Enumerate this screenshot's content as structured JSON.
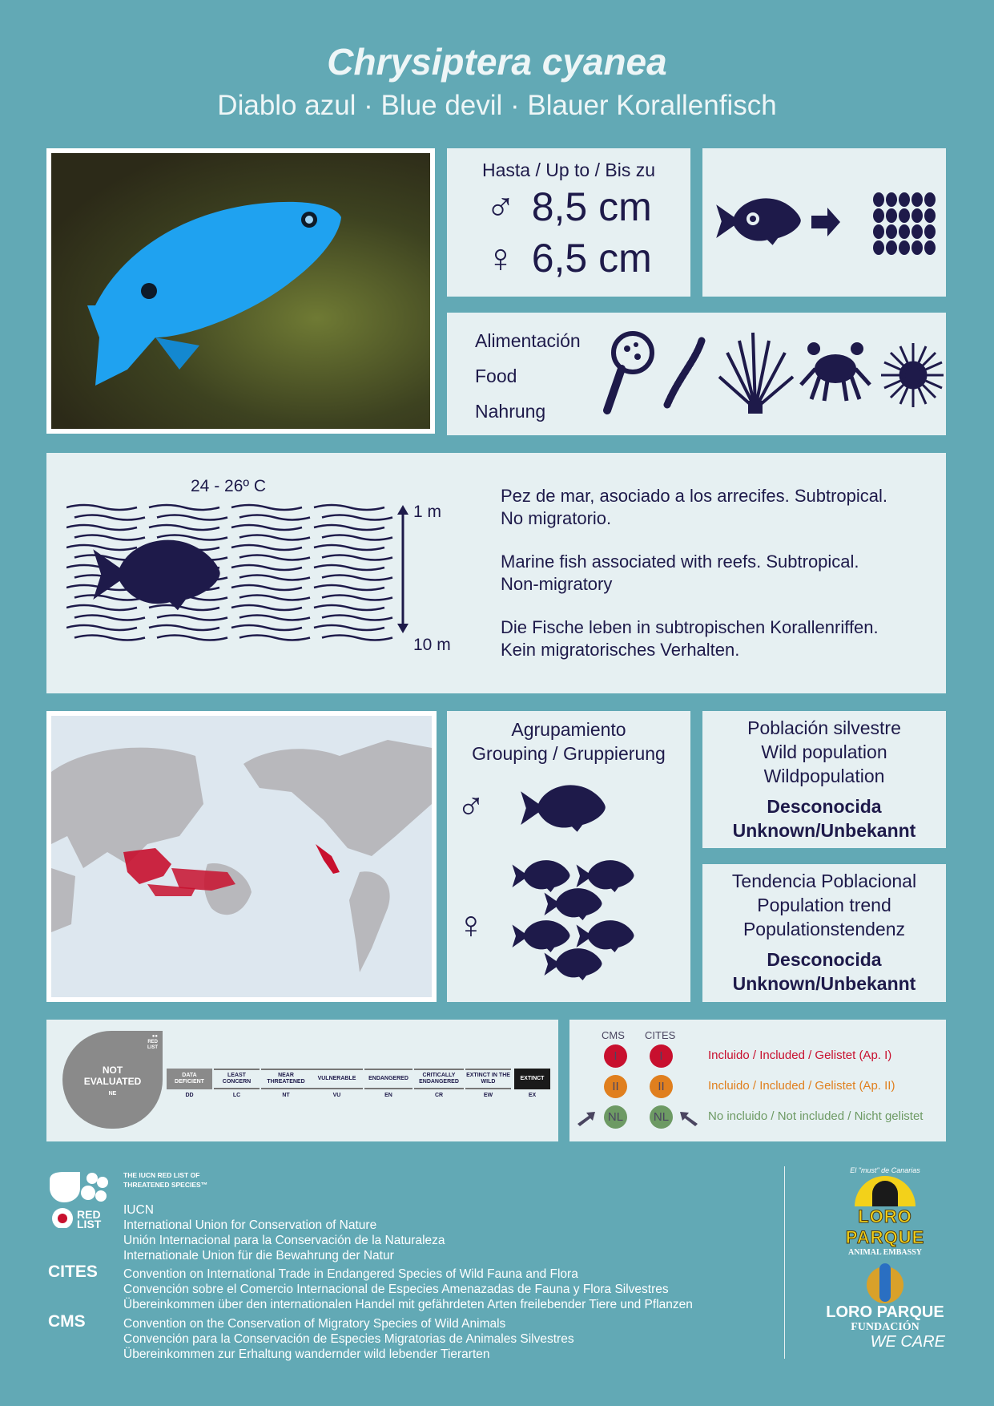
{
  "title": "Chrysiptera cyanea",
  "subtitle": "Diablo azul · Blue devil · Blauer Korallenfisch",
  "size": {
    "heading": "Hasta / Up to / Bis zu",
    "male_symbol": "♂",
    "male": "8,5 cm",
    "female_symbol": "♀",
    "female": "6,5 cm"
  },
  "food": {
    "labels": [
      "Alimentación",
      "Food",
      "Nahrung"
    ],
    "icons": [
      "plankton-magnifier-icon",
      "worm-icon",
      "crinoid-icon",
      "crab-icon",
      "sea-urchin-icon"
    ]
  },
  "habitat": {
    "temperature": "24 - 26º C",
    "depth_min": "1 m",
    "depth_max": "10 m",
    "texts": [
      "Pez de mar, asociado a los arrecifes. Subtropical.\nNo migratorio.",
      "Marine fish associated with reefs. Subtropical.\nNon-migratory",
      "Die Fische leben in subtropischen Korallenriffen.\nKein migratorisches Verhalten."
    ]
  },
  "grouping": {
    "title": "Agrupamiento",
    "subtitle": "Grouping / Gruppierung",
    "male_symbol": "♂",
    "female_symbol": "♀"
  },
  "population": {
    "lines": [
      "Población silvestre",
      "Wild population",
      "Wildpopulation"
    ],
    "status": "Desconocida",
    "status2": "Unknown/Unbekannt"
  },
  "trend": {
    "lines": [
      "Tendencia Poblacional",
      "Population trend",
      "Populationstendenz"
    ],
    "status": "Desconocida",
    "status2": "Unknown/Unbekannt"
  },
  "redlist": {
    "current": "NOT EVALUATED",
    "current_abbr": "NE",
    "logo_text": "RED LIST",
    "categories": [
      {
        "label": "DATA DEFICIENT",
        "abbr": "DD"
      },
      {
        "label": "LEAST CONCERN",
        "abbr": "LC"
      },
      {
        "label": "NEAR THREATENED",
        "abbr": "NT"
      },
      {
        "label": "VULNERABLE",
        "abbr": "VU"
      },
      {
        "label": "ENDANGERED",
        "abbr": "EN"
      },
      {
        "label": "CRITICALLY ENDANGERED",
        "abbr": "CR"
      },
      {
        "label": "EXTINCT IN THE WILD",
        "abbr": "EW"
      },
      {
        "label": "EXTINCT",
        "abbr": "EX"
      }
    ]
  },
  "cms_cites": {
    "col1": "CMS",
    "col2": "CITES",
    "status": "NL",
    "rows": [
      {
        "mark": "I",
        "label": "Incluido / Included / Gelistet (Ap. I)",
        "color": "#c8102e"
      },
      {
        "mark": "II",
        "label": "Incluido / Included / Gelistet (Ap. II)",
        "color": "#e07f1e"
      },
      {
        "mark": "NL",
        "label": "No incluido / Not included / Nicht gelistet",
        "color": "#6d9a64"
      }
    ]
  },
  "footer": {
    "iucn_logo": "THE IUCN RED LIST OF THREATENED SPECIES™",
    "iucn": [
      "IUCN",
      "International Union for Conservation of Nature",
      "Unión Internacional para la Conservación de la Naturaleza",
      "Internationale Union für die Bewahrung der Natur"
    ],
    "cites_label": "CITES",
    "cites": [
      "Convention on International Trade in Endangered Species of Wild Fauna and Flora",
      "Convención sobre el Comercio Internacional de Especies Amenazadas de Fauna y Flora Silvestres",
      "Übereinkommen über den internationalen Handel mit gefährdeten Arten freilebender Tiere und Pflanzen"
    ],
    "cms_label": "CMS",
    "cms": [
      "Convention on the Conservation of Migratory Species of Wild Animals",
      "Convención para la Conservación de Especies Migratorias de Animales Silvestres",
      "Übereinkommen zur Erhaltung wandernder wild lebender Tierarten"
    ],
    "logo1": "LORO PARQUE",
    "logo1_sub": "ANIMAL EMBASSY",
    "logo1_top": "El \"must\" de Canarias",
    "logo2": "LORO PARQUE",
    "logo2_sub": "FUNDACIÓN",
    "logo2_tag": "WE CARE"
  }
}
